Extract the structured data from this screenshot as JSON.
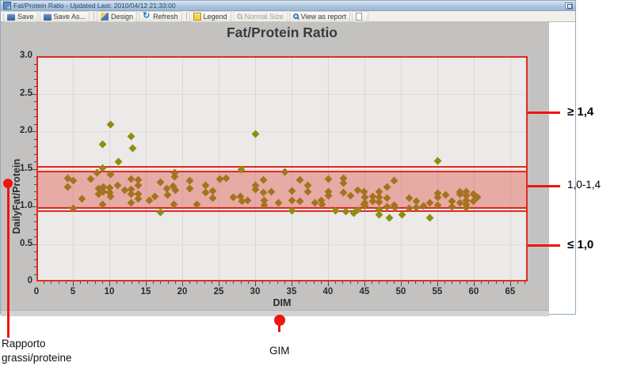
{
  "window": {
    "title": "Fat/Protein Ratio - Updated Last: 2010/04/12 21:33:00",
    "toolbar": {
      "buttons": [
        {
          "label": "Save",
          "icon": "save-icon",
          "ic": "ic-save"
        },
        {
          "label": "Save As...",
          "icon": "save-as-icon",
          "ic": "ic-save"
        },
        {
          "type": "sep"
        },
        {
          "label": "Design",
          "icon": "design-icon",
          "ic": "ic-pencil"
        },
        {
          "label": "Refresh",
          "icon": "refresh-icon",
          "ic": "ic-refresh"
        },
        {
          "type": "sep"
        },
        {
          "label": "Legend",
          "icon": "legend-icon",
          "ic": "ic-legend"
        },
        {
          "label": "Normal Size",
          "icon": "normal-size-icon",
          "ic": "ic-mag",
          "disabled": true
        },
        {
          "label": "View as report",
          "icon": "view-report-icon",
          "ic": "ic-mag blue"
        },
        {
          "label": "",
          "icon": "new-page-icon",
          "ic": "ic-page"
        }
      ]
    }
  },
  "chart_data": {
    "type": "scatter",
    "title": "Fat/Protein Ratio",
    "xlabel": "DIM",
    "ylabel": "DailyFat/Protein",
    "xlim": [
      0,
      67.4
    ],
    "ylim": [
      0,
      3.0
    ],
    "grid": true,
    "x_ticks": [
      {
        "v": 0,
        "label": "0"
      },
      {
        "v": 5,
        "label": "5"
      },
      {
        "v": 10,
        "label": "10"
      },
      {
        "v": 15,
        "label": "15"
      },
      {
        "v": 20,
        "label": "20"
      },
      {
        "v": 25,
        "label": "25"
      },
      {
        "v": 30,
        "label": "30"
      },
      {
        "v": 35,
        "label": "35"
      },
      {
        "v": 40,
        "label": "40"
      },
      {
        "v": 45,
        "label": "45"
      },
      {
        "v": 50,
        "label": "50"
      },
      {
        "v": 55,
        "label": "55"
      },
      {
        "v": 60,
        "label": "60"
      },
      {
        "v": 65,
        "label": "65"
      }
    ],
    "y_ticks": [
      {
        "v": 3.0,
        "label": "3.0"
      },
      {
        "v": 2.5,
        "label": "2.5"
      },
      {
        "v": 2.0,
        "label": "2.0"
      },
      {
        "v": 1.5,
        "label": "1.5"
      },
      {
        "v": 1.0,
        "label": "1.0"
      },
      {
        "v": 0.5,
        "label": "0.5"
      },
      {
        "v": 0,
        "label": "0"
      }
    ],
    "x_minor_step": 1,
    "y_minor_step": 0.1,
    "band": {
      "from": 0.97,
      "to": 1.47,
      "extra_lines": [
        1.53,
        0.94
      ],
      "fill": "#f0a49e",
      "line_color": "#e02b20"
    },
    "point_color_in_band": "#a5731e",
    "point_color_out_band": "#8f8c12",
    "points": [
      [
        4.3,
        1.37
      ],
      [
        4.3,
        1.26
      ],
      [
        5.1,
        1.34
      ],
      [
        5.1,
        0.97
      ],
      [
        6.2,
        1.1
      ],
      [
        7.4,
        1.36
      ],
      [
        8.3,
        1.45
      ],
      [
        8.5,
        1.24
      ],
      [
        8.5,
        1.16
      ],
      [
        9.1,
        1.83
      ],
      [
        9.1,
        1.51
      ],
      [
        9.1,
        1.03
      ],
      [
        9.2,
        1.26
      ],
      [
        9.2,
        1.19
      ],
      [
        10.2,
        2.09
      ],
      [
        10.2,
        1.43
      ],
      [
        10.1,
        1.25
      ],
      [
        10.1,
        1.18
      ],
      [
        10.2,
        1.13
      ],
      [
        11.2,
        1.6
      ],
      [
        11.1,
        1.28
      ],
      [
        12.1,
        1.22
      ],
      [
        13.0,
        1.93
      ],
      [
        13.2,
        1.77
      ],
      [
        13.0,
        1.36
      ],
      [
        13.0,
        1.23
      ],
      [
        13.0,
        1.16
      ],
      [
        13.0,
        1.05
      ],
      [
        14.0,
        1.35
      ],
      [
        14.0,
        1.28
      ],
      [
        14.0,
        1.16
      ],
      [
        14.0,
        1.1
      ],
      [
        15.5,
        1.08
      ],
      [
        16.3,
        1.13
      ],
      [
        17.0,
        1.32
      ],
      [
        17.0,
        0.92
      ],
      [
        17.9,
        1.24
      ],
      [
        18.0,
        1.15
      ],
      [
        18.8,
        1.27
      ],
      [
        19.0,
        1.45
      ],
      [
        19.0,
        1.4
      ],
      [
        19.1,
        1.22
      ],
      [
        18.9,
        1.03
      ],
      [
        21.0,
        1.34
      ],
      [
        21.0,
        1.24
      ],
      [
        22.0,
        1.03
      ],
      [
        23.2,
        1.28
      ],
      [
        23.2,
        1.18
      ],
      [
        24.2,
        1.21
      ],
      [
        24.2,
        1.11
      ],
      [
        25.2,
        1.36
      ],
      [
        26.0,
        1.37
      ],
      [
        27.0,
        1.12
      ],
      [
        28.1,
        1.49
      ],
      [
        28.0,
        1.13
      ],
      [
        28.2,
        1.07
      ],
      [
        29.0,
        1.08
      ],
      [
        30.1,
        1.96
      ],
      [
        30.1,
        1.28
      ],
      [
        30.1,
        1.23
      ],
      [
        31.1,
        1.35
      ],
      [
        31.1,
        1.18
      ],
      [
        31.2,
        1.08
      ],
      [
        31.2,
        1.02
      ],
      [
        32.2,
        1.19
      ],
      [
        33.2,
        1.05
      ],
      [
        34.1,
        1.46
      ],
      [
        35.1,
        1.21
      ],
      [
        35.1,
        1.08
      ],
      [
        35.1,
        0.94
      ],
      [
        36.2,
        1.35
      ],
      [
        36.2,
        1.07
      ],
      [
        37.2,
        1.28
      ],
      [
        37.2,
        1.19
      ],
      [
        38.2,
        1.05
      ],
      [
        39.1,
        1.08
      ],
      [
        39.2,
        1.03
      ],
      [
        40.1,
        1.36
      ],
      [
        40.1,
        1.19
      ],
      [
        40.1,
        1.14
      ],
      [
        41.0,
        0.94
      ],
      [
        42.1,
        1.37
      ],
      [
        42.1,
        1.31
      ],
      [
        42.1,
        1.18
      ],
      [
        42.5,
        0.93
      ],
      [
        43.1,
        1.14
      ],
      [
        43.5,
        0.91
      ],
      [
        44.1,
        1.22
      ],
      [
        44.1,
        0.95
      ],
      [
        45.1,
        1.12
      ],
      [
        45.1,
        1.05
      ],
      [
        45.0,
        1.19
      ],
      [
        45.0,
        1.03
      ],
      [
        45.1,
        1.01
      ],
      [
        46.1,
        1.13
      ],
      [
        46.1,
        1.07
      ],
      [
        47.0,
        1.19
      ],
      [
        47.0,
        1.12
      ],
      [
        47.0,
        1.06
      ],
      [
        47.0,
        0.95
      ],
      [
        47.0,
        0.89
      ],
      [
        48.1,
        1.26
      ],
      [
        48.1,
        1.11
      ],
      [
        48.1,
        1.0
      ],
      [
        48.4,
        0.85
      ],
      [
        49.1,
        1.34
      ],
      [
        49.1,
        1.02
      ],
      [
        49.2,
        0.98
      ],
      [
        50.2,
        0.89
      ],
      [
        51.1,
        1.11
      ],
      [
        51.1,
        0.97
      ],
      [
        52.1,
        1.07
      ],
      [
        52.1,
        0.98
      ],
      [
        53.1,
        1.01
      ],
      [
        54.0,
        1.05
      ],
      [
        54.0,
        0.85
      ],
      [
        55.1,
        1.61
      ],
      [
        55.1,
        1.17
      ],
      [
        55.1,
        1.12
      ],
      [
        55.1,
        1.02
      ],
      [
        56.1,
        1.15
      ],
      [
        57.0,
        1.07
      ],
      [
        57.0,
        1.0
      ],
      [
        58.1,
        1.2
      ],
      [
        58.1,
        1.16
      ],
      [
        58.1,
        1.05
      ],
      [
        59.0,
        1.19
      ],
      [
        59.0,
        1.14
      ],
      [
        59.0,
        1.08
      ],
      [
        59.0,
        1.03
      ],
      [
        59.0,
        0.98
      ],
      [
        60.0,
        1.16
      ],
      [
        60.0,
        1.07
      ],
      [
        60.5,
        1.12
      ]
    ]
  },
  "annotations": {
    "right_labels": [
      {
        "label": "≥ 1,4",
        "y": 142,
        "bold": true
      },
      {
        "label": "1,0-1,4",
        "y": 235,
        "bold": false
      },
      {
        "label": "≤ 1,0",
        "y": 310,
        "bold": true
      }
    ],
    "callouts": {
      "left": {
        "line1": "Rapporto",
        "line2": "grassi/proteine"
      },
      "bottom": {
        "label": "GIM"
      }
    }
  }
}
